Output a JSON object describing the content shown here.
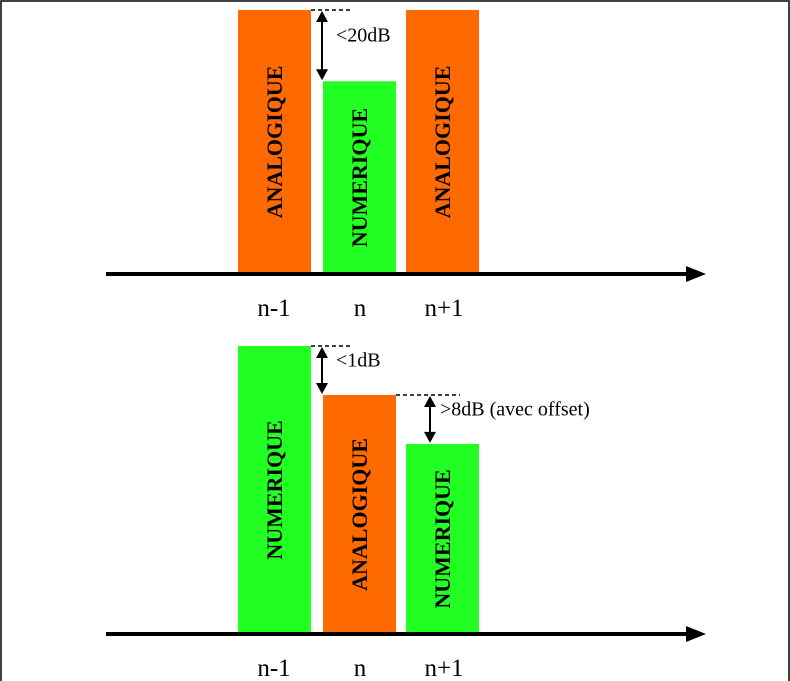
{
  "colors": {
    "analogique": "#FF6A00",
    "numerique": "#22FF22",
    "axis": "#000000",
    "frame": "#000000"
  },
  "diagrams": [
    {
      "id": "top",
      "channels": [
        {
          "label": "n-1",
          "signal": "ANALOGIQUE",
          "level": 1.0,
          "type": "analogique"
        },
        {
          "label": "n",
          "signal": "NUMERIQUE",
          "level": 0.73,
          "type": "numerique"
        },
        {
          "label": "n+1",
          "signal": "ANALOGIQUE",
          "level": 1.0,
          "type": "analogique"
        }
      ],
      "annotations": [
        {
          "text": "<20dB",
          "from_channel": 0,
          "to_channel": 1
        }
      ]
    },
    {
      "id": "bottom",
      "channels": [
        {
          "label": "n-1",
          "signal": "NUMERIQUE",
          "level": 1.0,
          "type": "numerique"
        },
        {
          "label": "n",
          "signal": "ANALOGIQUE",
          "level": 0.83,
          "type": "analogique"
        },
        {
          "label": "n+1",
          "signal": "NUMERIQUE",
          "level": 0.66,
          "type": "numerique"
        }
      ],
      "annotations": [
        {
          "text": "<1dB",
          "from_channel": 0,
          "to_channel": 1
        },
        {
          "text": ">8dB (avec offset)",
          "from_channel": 1,
          "to_channel": 2
        }
      ]
    }
  ]
}
